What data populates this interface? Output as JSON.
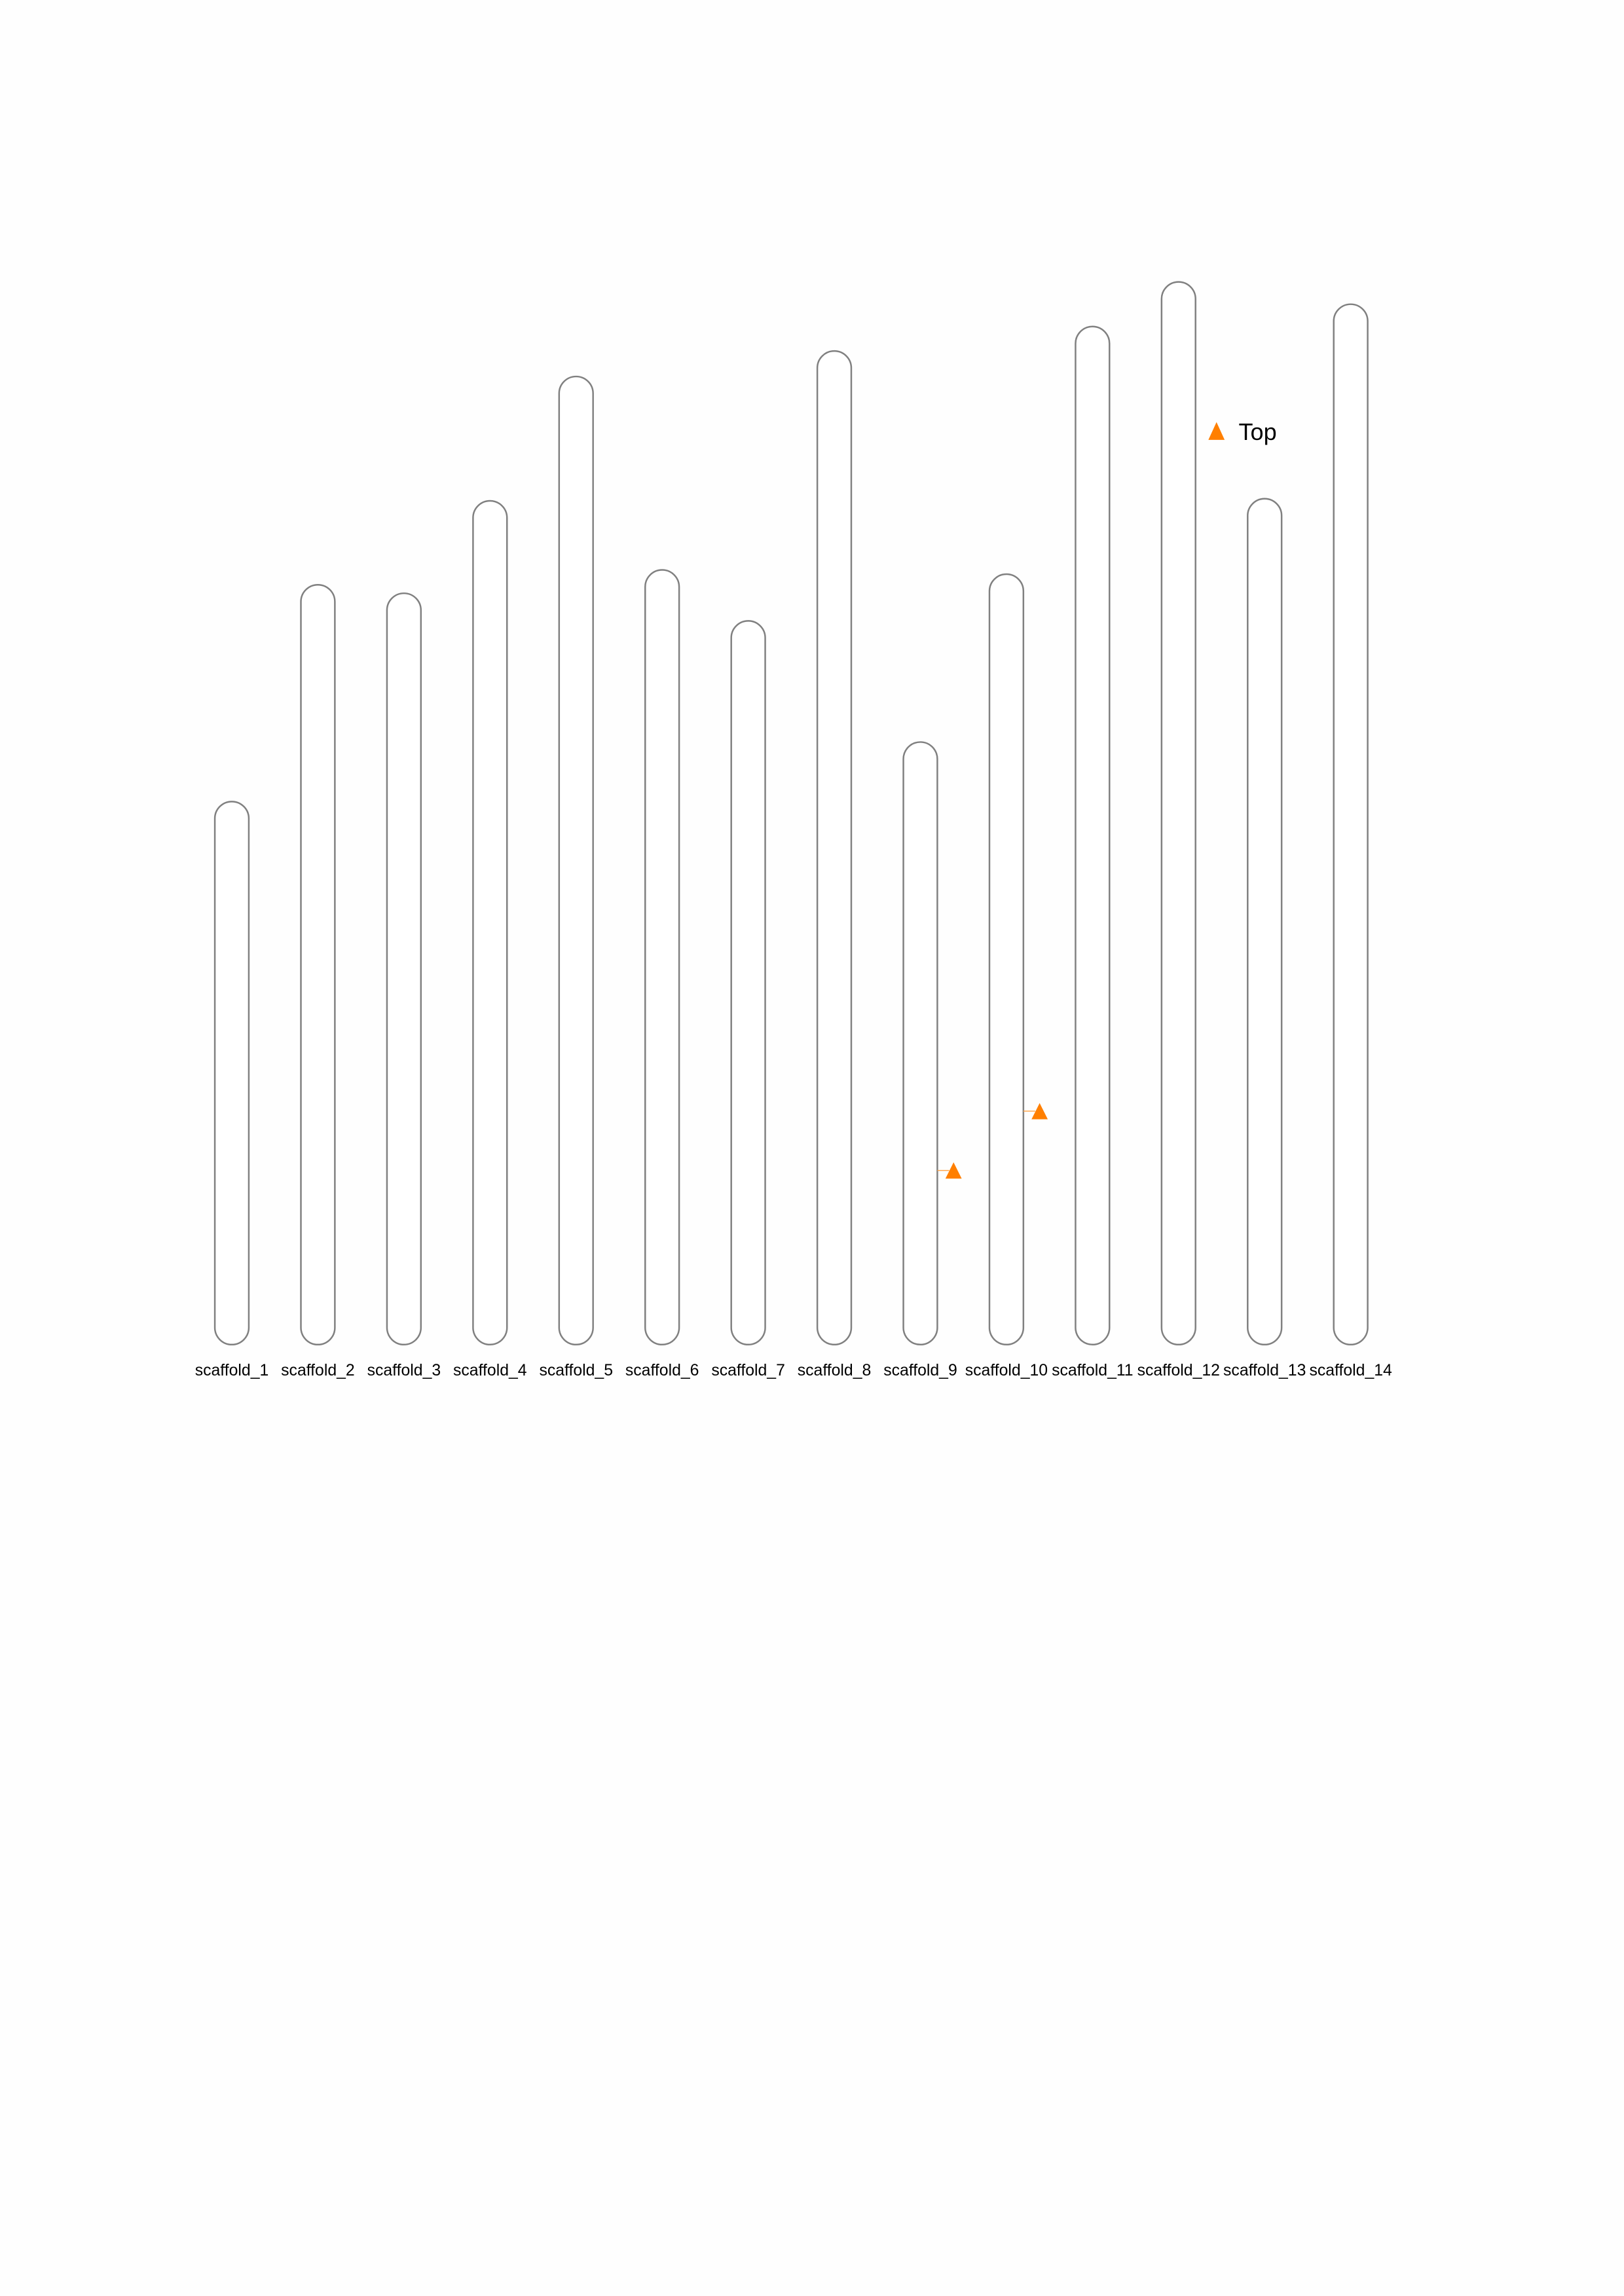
{
  "chart_data": {
    "type": "ideogram",
    "title": "",
    "length_unit": "relative to longest scaffold",
    "chromosomes": [
      {
        "name": "scaffold_1",
        "relative_length": 0.511
      },
      {
        "name": "scaffold_2",
        "relative_length": 0.715
      },
      {
        "name": "scaffold_3",
        "relative_length": 0.707
      },
      {
        "name": "scaffold_4",
        "relative_length": 0.794
      },
      {
        "name": "scaffold_5",
        "relative_length": 0.911
      },
      {
        "name": "scaffold_6",
        "relative_length": 0.729
      },
      {
        "name": "scaffold_7",
        "relative_length": 0.681
      },
      {
        "name": "scaffold_8",
        "relative_length": 0.935
      },
      {
        "name": "scaffold_9",
        "relative_length": 0.567
      },
      {
        "name": "scaffold_10",
        "relative_length": 0.725
      },
      {
        "name": "scaffold_11",
        "relative_length": 0.958
      },
      {
        "name": "scaffold_12",
        "relative_length": 1.0
      },
      {
        "name": "scaffold_13",
        "relative_length": 0.796
      },
      {
        "name": "scaffold_14",
        "relative_length": 0.979
      }
    ],
    "markers": [
      {
        "chromosome": "scaffold_9",
        "position_fraction_from_top": 0.711,
        "type": "Top",
        "shape": "triangle"
      },
      {
        "chromosome": "scaffold_10",
        "position_fraction_from_top": 0.697,
        "type": "Top",
        "shape": "triangle"
      }
    ],
    "legend": {
      "entries": [
        {
          "label": "Top",
          "shape": "triangle",
          "color": "#ff7f00"
        }
      ],
      "placement": "top-right"
    },
    "colors": {
      "chromosome_outline": "#808080",
      "chromosome_fill": "#ffffff",
      "marker": "#ff7f00"
    }
  }
}
